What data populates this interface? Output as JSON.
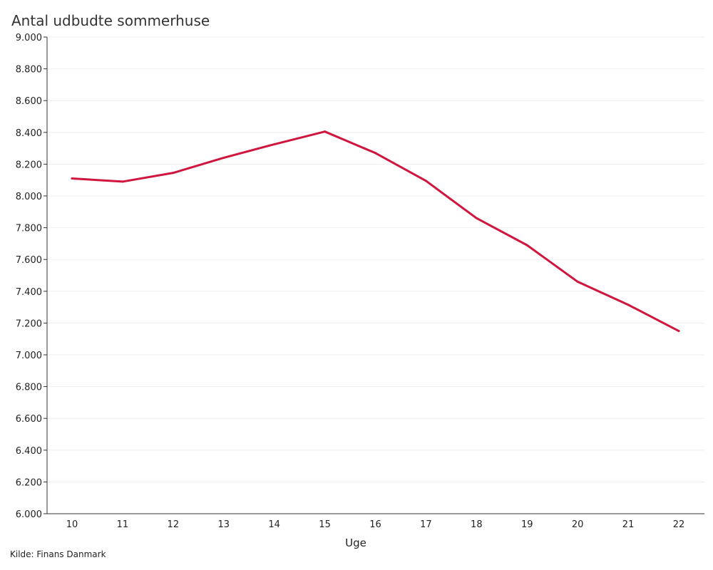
{
  "chart_data": {
    "type": "line",
    "title": "Antal udbudte sommerhuse",
    "xlabel": "Uge",
    "ylabel": "",
    "source": "Kilde: Finans Danmark",
    "categories": [
      "10",
      "11",
      "12",
      "13",
      "14",
      "15",
      "16",
      "17",
      "18",
      "19",
      "20",
      "21",
      "22"
    ],
    "series": [
      {
        "values": [
          8110,
          8090,
          8145,
          8240,
          8325,
          8405,
          8270,
          8095,
          7860,
          7690,
          7460,
          7315,
          7150
        ]
      }
    ],
    "ylim": [
      6000,
      9000
    ],
    "yticks": [
      6000,
      6200,
      6400,
      6600,
      6800,
      7000,
      7200,
      7400,
      7600,
      7800,
      8000,
      8200,
      8400,
      8600,
      8800,
      9000
    ],
    "ytick_labels": [
      "6.000",
      "6.200",
      "6.400",
      "6.600",
      "6.800",
      "7.000",
      "7.200",
      "7.400",
      "7.600",
      "7.800",
      "8.000",
      "8.200",
      "8.400",
      "8.600",
      "8.800",
      "9.000"
    ],
    "grid": true,
    "line_color": "#d0163f",
    "grid_color": "#eeeeee",
    "axis_color": "#333333"
  }
}
